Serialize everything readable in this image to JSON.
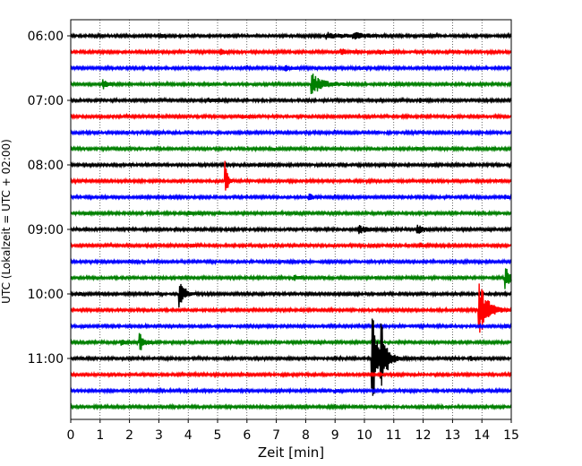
{
  "chart_data": {
    "type": "line",
    "xlabel": "Zeit  [min]",
    "ylabel": "UTC (Lokalzeit = UTC + 02:00)",
    "xlim": [
      0,
      15
    ],
    "x_ticks": [
      "0",
      "1",
      "2",
      "3",
      "4",
      "5",
      "6",
      "7",
      "8",
      "9",
      "10",
      "11",
      "12",
      "13",
      "14",
      "15"
    ],
    "y_tick_labels": [
      "06:00",
      "07:00",
      "08:00",
      "09:00",
      "10:00",
      "11:00"
    ],
    "y_tick_trace_index": [
      0,
      4,
      8,
      12,
      16,
      20
    ],
    "grid": "vertical dotted",
    "traces_per_hour": 4,
    "trace_minutes": 15,
    "colors": [
      "#000000",
      "#ff0000",
      "#0000ff",
      "#008000"
    ],
    "traces": [
      {
        "start": "06:00",
        "events": [
          {
            "t": 3.1,
            "amp": 0.15,
            "dur": 0.2
          },
          {
            "t": 8.7,
            "amp": 0.2,
            "dur": 1.0
          },
          {
            "t": 9.6,
            "amp": 0.28,
            "dur": 0.6
          },
          {
            "t": 12.1,
            "amp": 0.12,
            "dur": 0.3
          }
        ]
      },
      {
        "start": "06:15",
        "events": [
          {
            "t": 5.1,
            "amp": 0.3,
            "dur": 0.2
          },
          {
            "t": 9.2,
            "amp": 0.22,
            "dur": 0.3
          },
          {
            "t": 10.5,
            "amp": 0.12,
            "dur": 0.4
          }
        ]
      },
      {
        "start": "06:30",
        "events": [
          {
            "t": 7.3,
            "amp": 0.18,
            "dur": 0.5
          },
          {
            "t": 9.8,
            "amp": 0.1,
            "dur": 0.4
          }
        ]
      },
      {
        "start": "06:45",
        "events": [
          {
            "t": 1.1,
            "amp": 0.3,
            "dur": 0.3
          },
          {
            "t": 8.2,
            "amp": 0.75,
            "dur": 0.7
          },
          {
            "t": 11.0,
            "amp": 0.1,
            "dur": 0.3
          }
        ]
      },
      {
        "start": "07:00",
        "events": [
          {
            "t": 4.7,
            "amp": 0.15,
            "dur": 0.5
          },
          {
            "t": 11.9,
            "amp": 0.1,
            "dur": 0.3
          }
        ]
      },
      {
        "start": "07:15",
        "events": [
          {
            "t": 5.8,
            "amp": 0.12,
            "dur": 0.5
          }
        ]
      },
      {
        "start": "07:30",
        "events": []
      },
      {
        "start": "07:45",
        "events": [
          {
            "t": 6.9,
            "amp": 0.1,
            "dur": 0.3
          },
          {
            "t": 11.7,
            "amp": 0.1,
            "dur": 0.3
          }
        ]
      },
      {
        "start": "08:00",
        "events": [
          {
            "t": 6.4,
            "amp": 0.1,
            "dur": 0.3
          },
          {
            "t": 12.3,
            "amp": 0.1,
            "dur": 0.2
          }
        ]
      },
      {
        "start": "08:15",
        "events": [
          {
            "t": 5.25,
            "amp": 1.8,
            "dur": 0.15
          },
          {
            "t": 14.5,
            "amp": 0.12,
            "dur": 0.2
          }
        ]
      },
      {
        "start": "08:30",
        "events": [
          {
            "t": 8.1,
            "amp": 0.3,
            "dur": 0.3
          },
          {
            "t": 14.8,
            "amp": 0.15,
            "dur": 0.2
          }
        ]
      },
      {
        "start": "08:45",
        "events": [
          {
            "t": 0.5,
            "amp": 0.12,
            "dur": 0.3
          },
          {
            "t": 4.0,
            "amp": 0.1,
            "dur": 0.3
          }
        ]
      },
      {
        "start": "09:00",
        "events": [
          {
            "t": 9.8,
            "amp": 0.3,
            "dur": 0.6
          },
          {
            "t": 11.8,
            "amp": 0.35,
            "dur": 0.4
          }
        ]
      },
      {
        "start": "09:15",
        "events": [
          {
            "t": 4.1,
            "amp": 0.12,
            "dur": 0.3
          },
          {
            "t": 11.9,
            "amp": 0.18,
            "dur": 0.3
          }
        ]
      },
      {
        "start": "09:30",
        "events": [
          {
            "t": 2.0,
            "amp": 0.1,
            "dur": 0.3
          }
        ]
      },
      {
        "start": "09:45",
        "events": [
          {
            "t": 7.6,
            "amp": 0.2,
            "dur": 0.3
          },
          {
            "t": 14.8,
            "amp": 0.8,
            "dur": 0.4
          }
        ]
      },
      {
        "start": "10:00",
        "events": [
          {
            "t": 0.3,
            "amp": 0.15,
            "dur": 0.2
          },
          {
            "t": 3.7,
            "amp": 1.25,
            "dur": 0.3
          }
        ]
      },
      {
        "start": "10:15",
        "events": [
          {
            "t": 13.9,
            "amp": 2.3,
            "dur": 0.5
          }
        ]
      },
      {
        "start": "10:30",
        "events": [
          {
            "t": 14.8,
            "amp": 0.15,
            "dur": 0.2
          }
        ]
      },
      {
        "start": "10:45",
        "events": [
          {
            "t": 1.7,
            "amp": 0.2,
            "dur": 0.4
          },
          {
            "t": 2.35,
            "amp": 0.8,
            "dur": 0.3
          }
        ]
      },
      {
        "start": "11:00",
        "events": [
          {
            "t": 10.25,
            "amp": 3.8,
            "dur": 0.35
          },
          {
            "t": 10.55,
            "amp": 2.3,
            "dur": 0.4
          },
          {
            "t": 13.6,
            "amp": 0.15,
            "dur": 0.2
          }
        ]
      },
      {
        "start": "11:15",
        "events": []
      },
      {
        "start": "11:30",
        "events": [
          {
            "t": 9.0,
            "amp": 0.1,
            "dur": 0.3
          }
        ]
      },
      {
        "start": "11:45",
        "events": []
      }
    ]
  }
}
